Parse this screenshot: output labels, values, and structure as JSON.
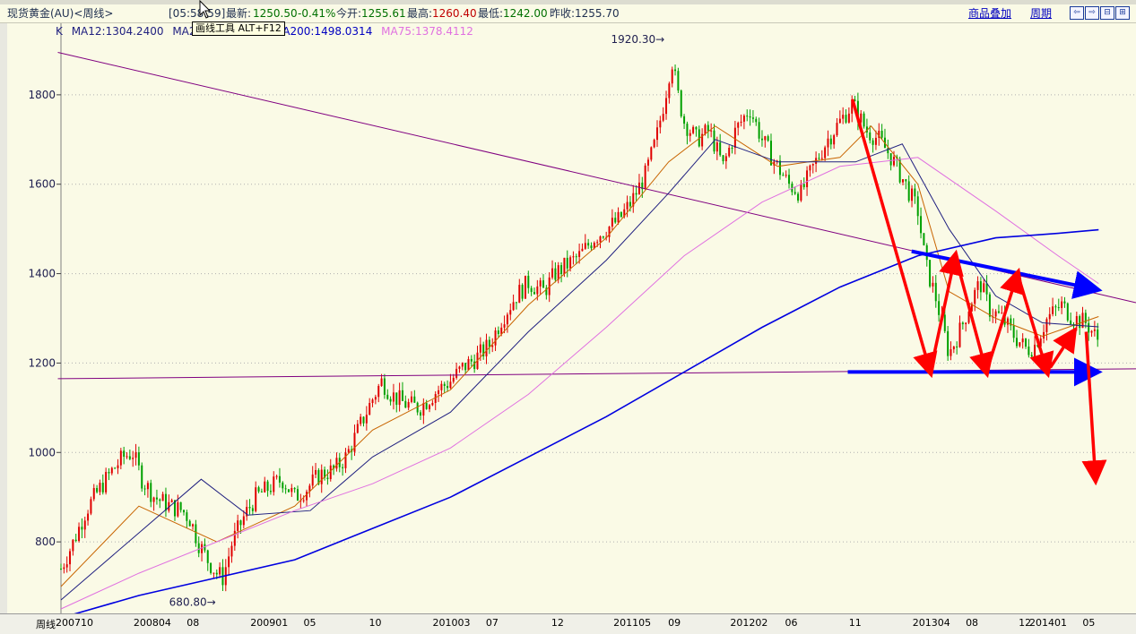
{
  "header": {
    "instrument": "现货黄金(AU)<周线>",
    "time": "[05:58:59]",
    "latest_label": "最新:",
    "latest_value": "1250.50",
    "change": "-0.41%",
    "open_label": "今开:",
    "open_value": "1255.61",
    "high_label": "最高:",
    "high_value": "1260.40",
    "low_label": "最低:",
    "low_value": "1242.00",
    "prev_label": "昨收:",
    "prev_value": "1255.70",
    "overlay_link": "商品叠加",
    "period_link": "周期",
    "window_buttons": [
      "⇦",
      "⇨",
      "⊟",
      "⊞"
    ]
  },
  "legend": {
    "prefix": "K",
    "ma12": "MA12:1304.2400",
    "ma26": "MA26:1281.1067",
    "ma200": "MA200:1498.0314",
    "ma75": "MA75:1378.4112"
  },
  "tooltip": "画线工具 ALT+F12",
  "colors": {
    "ma12": "#c86400",
    "ma26": "#202080",
    "ma200": "#0000e0",
    "ma75": "#e070e0",
    "up": "#e00000",
    "down": "#00a000",
    "annot_red": "#ff0000",
    "annot_blue": "#0000ff"
  },
  "xaxis": {
    "period_label": "周线",
    "ticks": [
      {
        "label": "200710",
        "pos": 0.0
      },
      {
        "label": "200804",
        "pos": 0.5
      },
      {
        "label": "08",
        "pos": 0.83
      },
      {
        "label": "200901",
        "pos": 1.25
      },
      {
        "label": "05",
        "pos": 1.58
      },
      {
        "label": "10",
        "pos": 2.0
      },
      {
        "label": "201003",
        "pos": 2.42
      },
      {
        "label": "07",
        "pos": 2.75
      },
      {
        "label": "12",
        "pos": 3.17
      },
      {
        "label": "201105",
        "pos": 3.58
      },
      {
        "label": "09",
        "pos": 3.92
      },
      {
        "label": "201202",
        "pos": 4.33
      },
      {
        "label": "06",
        "pos": 4.67
      },
      {
        "label": "11",
        "pos": 5.08
      },
      {
        "label": "201304",
        "pos": 5.5
      },
      {
        "label": "08",
        "pos": 5.83
      },
      {
        "label": "12",
        "pos": 6.17
      },
      {
        "label": "201401",
        "pos": 6.25
      },
      {
        "label": "05",
        "pos": 6.58
      }
    ]
  },
  "chart_data": {
    "type": "candlestick",
    "title": "现货黄金(AU)<周线>",
    "ylim": [
      640,
      1960
    ],
    "y_ticks": [
      800,
      1000,
      1200,
      1400,
      1600,
      1800
    ],
    "x_unit": "years since 2007-10",
    "xlim": [
      0,
      6.9
    ],
    "annotations": [
      {
        "label": "1920.30",
        "x": 3.92,
        "y": 1920.3
      },
      {
        "label": "680.80",
        "x": 1.04,
        "y": 680.8
      }
    ],
    "price_path": [
      [
        0.0,
        740
      ],
      [
        0.08,
        800
      ],
      [
        0.16,
        870
      ],
      [
        0.25,
        920
      ],
      [
        0.33,
        960
      ],
      [
        0.4,
        990
      ],
      [
        0.46,
        1000
      ],
      [
        0.52,
        940
      ],
      [
        0.6,
        900
      ],
      [
        0.7,
        880
      ],
      [
        0.78,
        870
      ],
      [
        0.83,
        850
      ],
      [
        0.88,
        800
      ],
      [
        0.94,
        760
      ],
      [
        1.0,
        730
      ],
      [
        1.04,
        720
      ],
      [
        1.1,
        800
      ],
      [
        1.18,
        860
      ],
      [
        1.25,
        900
      ],
      [
        1.33,
        920
      ],
      [
        1.42,
        940
      ],
      [
        1.5,
        900
      ],
      [
        1.58,
        920
      ],
      [
        1.66,
        950
      ],
      [
        1.75,
        960
      ],
      [
        1.83,
        990
      ],
      [
        1.92,
        1060
      ],
      [
        2.0,
        1120
      ],
      [
        2.06,
        1160
      ],
      [
        2.12,
        1130
      ],
      [
        2.2,
        1110
      ],
      [
        2.3,
        1100
      ],
      [
        2.42,
        1140
      ],
      [
        2.5,
        1160
      ],
      [
        2.58,
        1190
      ],
      [
        2.66,
        1210
      ],
      [
        2.75,
        1240
      ],
      [
        2.83,
        1300
      ],
      [
        2.92,
        1350
      ],
      [
        3.0,
        1380
      ],
      [
        3.1,
        1360
      ],
      [
        3.17,
        1400
      ],
      [
        3.25,
        1420
      ],
      [
        3.33,
        1440
      ],
      [
        3.42,
        1480
      ],
      [
        3.5,
        1500
      ],
      [
        3.58,
        1520
      ],
      [
        3.66,
        1560
      ],
      [
        3.75,
        1620
      ],
      [
        3.82,
        1700
      ],
      [
        3.88,
        1800
      ],
      [
        3.92,
        1880
      ],
      [
        3.96,
        1800
      ],
      [
        4.0,
        1740
      ],
      [
        4.08,
        1700
      ],
      [
        4.16,
        1720
      ],
      [
        4.25,
        1640
      ],
      [
        4.33,
        1720
      ],
      [
        4.42,
        1770
      ],
      [
        4.5,
        1700
      ],
      [
        4.58,
        1650
      ],
      [
        4.67,
        1600
      ],
      [
        4.75,
        1580
      ],
      [
        4.83,
        1640
      ],
      [
        4.92,
        1700
      ],
      [
        5.0,
        1740
      ],
      [
        5.08,
        1780
      ],
      [
        5.17,
        1720
      ],
      [
        5.25,
        1700
      ],
      [
        5.33,
        1660
      ],
      [
        5.42,
        1600
      ],
      [
        5.5,
        1540
      ],
      [
        5.55,
        1420
      ],
      [
        5.62,
        1340
      ],
      [
        5.7,
        1220
      ],
      [
        5.78,
        1280
      ],
      [
        5.83,
        1330
      ],
      [
        5.9,
        1380
      ],
      [
        5.96,
        1320
      ],
      [
        6.04,
        1300
      ],
      [
        6.12,
        1260
      ],
      [
        6.2,
        1230
      ],
      [
        6.25,
        1240
      ],
      [
        6.33,
        1300
      ],
      [
        6.42,
        1330
      ],
      [
        6.5,
        1300
      ],
      [
        6.58,
        1290
      ],
      [
        6.66,
        1250
      ]
    ],
    "series": [
      {
        "name": "MA12",
        "values": [
          [
            0,
            700
          ],
          [
            0.5,
            880
          ],
          [
            1.0,
            800
          ],
          [
            1.5,
            880
          ],
          [
            2.0,
            1050
          ],
          [
            2.5,
            1140
          ],
          [
            3.0,
            1330
          ],
          [
            3.5,
            1480
          ],
          [
            3.9,
            1650
          ],
          [
            4.2,
            1730
          ],
          [
            4.6,
            1640
          ],
          [
            5.0,
            1660
          ],
          [
            5.2,
            1730
          ],
          [
            5.5,
            1600
          ],
          [
            5.7,
            1360
          ],
          [
            6.0,
            1300
          ],
          [
            6.3,
            1260
          ],
          [
            6.66,
            1304
          ]
        ]
      },
      {
        "name": "MA26",
        "values": [
          [
            0,
            670
          ],
          [
            0.5,
            820
          ],
          [
            0.9,
            940
          ],
          [
            1.2,
            860
          ],
          [
            1.6,
            870
          ],
          [
            2.0,
            990
          ],
          [
            2.5,
            1090
          ],
          [
            3.0,
            1270
          ],
          [
            3.5,
            1430
          ],
          [
            3.9,
            1580
          ],
          [
            4.2,
            1700
          ],
          [
            4.6,
            1650
          ],
          [
            5.1,
            1650
          ],
          [
            5.4,
            1690
          ],
          [
            5.7,
            1500
          ],
          [
            6.0,
            1350
          ],
          [
            6.3,
            1290
          ],
          [
            6.66,
            1281
          ]
        ]
      },
      {
        "name": "MA75",
        "values": [
          [
            0,
            650
          ],
          [
            0.5,
            730
          ],
          [
            1.0,
            800
          ],
          [
            1.5,
            870
          ],
          [
            2.0,
            930
          ],
          [
            2.5,
            1010
          ],
          [
            3.0,
            1130
          ],
          [
            3.5,
            1280
          ],
          [
            4.0,
            1440
          ],
          [
            4.5,
            1560
          ],
          [
            5.0,
            1640
          ],
          [
            5.5,
            1660
          ],
          [
            6.0,
            1540
          ],
          [
            6.4,
            1440
          ],
          [
            6.66,
            1378
          ]
        ]
      },
      {
        "name": "MA200",
        "values": [
          [
            0,
            630
          ],
          [
            0.5,
            680
          ],
          [
            1.0,
            720
          ],
          [
            1.5,
            760
          ],
          [
            2.0,
            830
          ],
          [
            2.5,
            900
          ],
          [
            3.0,
            990
          ],
          [
            3.5,
            1080
          ],
          [
            4.0,
            1180
          ],
          [
            4.5,
            1280
          ],
          [
            5.0,
            1370
          ],
          [
            5.5,
            1440
          ],
          [
            6.0,
            1480
          ],
          [
            6.4,
            1490
          ],
          [
            6.66,
            1498
          ]
        ]
      }
    ],
    "drawn_lines": [
      {
        "color": "#800080",
        "x1": -0.02,
        "y1": 1895,
        "x2": 6.9,
        "y2": 1335
      },
      {
        "color": "#800080",
        "x1": -0.02,
        "y1": 1165,
        "x2": 6.9,
        "y2": 1187
      }
    ],
    "arrows_red": [
      [
        5.08,
        1790,
        5.58,
        1180
      ],
      [
        5.58,
        1180,
        5.74,
        1440
      ],
      [
        5.74,
        1440,
        5.94,
        1180
      ],
      [
        5.94,
        1180,
        6.14,
        1400
      ],
      [
        6.14,
        1400,
        6.33,
        1180
      ],
      [
        6.35,
        1190,
        6.5,
        1270
      ],
      [
        6.58,
        1270,
        6.64,
        940
      ]
    ],
    "arrows_blue": [
      [
        5.46,
        1450,
        6.64,
        1365
      ],
      [
        5.05,
        1180,
        6.64,
        1180
      ]
    ]
  }
}
